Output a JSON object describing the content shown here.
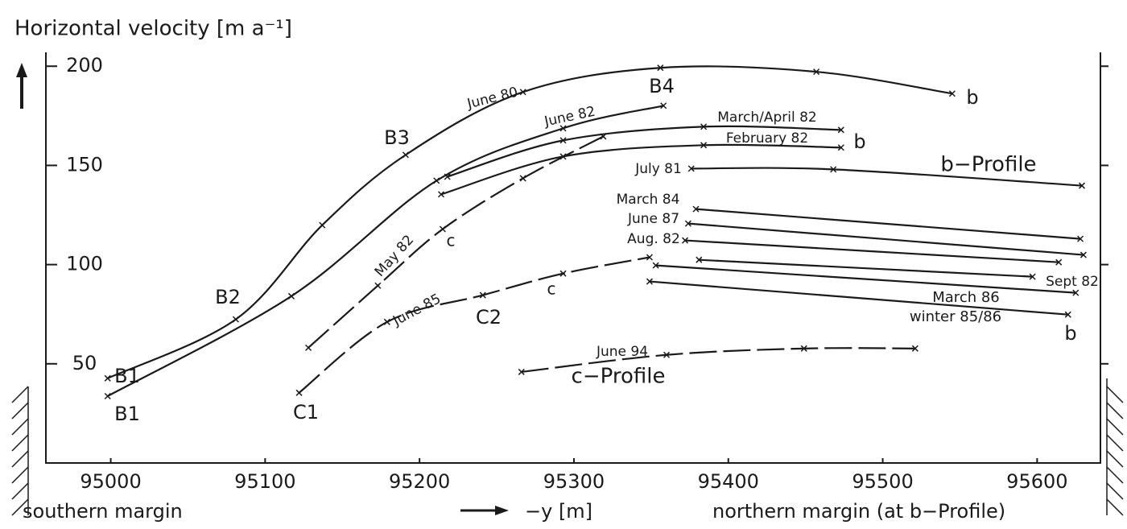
{
  "chart_data": {
    "type": "line",
    "title": "Horizontal velocity [m a⁻¹]",
    "x_label": "−y [m]",
    "left_label": "southern margin",
    "right_label": "northern margin (at b−Profile)",
    "color": "#1a1a1a",
    "xlim": [
      94958,
      95641
    ],
    "ylim": [
      0,
      207
    ],
    "xticks": [
      95000,
      95100,
      95200,
      95300,
      95400,
      95500,
      95600
    ],
    "yticks": [
      50,
      100,
      150,
      200
    ],
    "series": [
      {
        "name": "June 80",
        "style": "solid",
        "x": [
          94998,
          95081,
          95137,
          95191,
          95267,
          95356,
          95457,
          95545
        ],
        "values": [
          42.7,
          72.4,
          119.9,
          155.3,
          187.0,
          199.2,
          197.2,
          186.2
        ]
      },
      {
        "name": "June 82",
        "style": "solid",
        "x": [
          94998,
          95117,
          95211,
          95293,
          95358
        ],
        "values": [
          33.7,
          84.1,
          142.3,
          168.7,
          180.1
        ]
      },
      {
        "name": "March/April 82",
        "style": "solid",
        "x": [
          95218,
          95293,
          95384,
          95473
        ],
        "values": [
          144.3,
          162.6,
          169.5,
          167.9
        ]
      },
      {
        "name": "February 82",
        "style": "solid",
        "x": [
          95214,
          95293,
          95384,
          95473
        ],
        "values": [
          135.4,
          154.5,
          160.2,
          159.0
        ]
      },
      {
        "name": "July 81",
        "style": "solid",
        "x": [
          95376,
          95468,
          95629
        ],
        "values": [
          148.4,
          148.0,
          139.8
        ]
      },
      {
        "name": "March 84",
        "style": "solid",
        "x": [
          95379,
          95628
        ],
        "values": [
          128.0,
          113.0
        ]
      },
      {
        "name": "June 87",
        "style": "solid",
        "x": [
          95374,
          95630
        ],
        "values": [
          120.7,
          104.9
        ]
      },
      {
        "name": "Aug. 82",
        "style": "solid",
        "x": [
          95372,
          95614
        ],
        "values": [
          112.2,
          101.2
        ]
      },
      {
        "name": "Sept 82",
        "style": "solid",
        "x": [
          95381,
          95597
        ],
        "values": [
          102.4,
          93.9
        ]
      },
      {
        "name": "March 86",
        "style": "solid",
        "x": [
          95353,
          95625
        ],
        "values": [
          99.6,
          85.8
        ]
      },
      {
        "name": "winter 85/86",
        "style": "solid",
        "x": [
          95349,
          95620
        ],
        "values": [
          91.5,
          74.8
        ]
      },
      {
        "name": "May 82",
        "style": "dashed",
        "x": [
          95128,
          95173,
          95215,
          95267,
          95319
        ],
        "values": [
          58.1,
          89.4,
          117.9,
          143.5,
          164.6
        ]
      },
      {
        "name": "June 85",
        "style": "dashed",
        "x": [
          95122,
          95179,
          95241,
          95293,
          95349
        ],
        "values": [
          35.4,
          71.1,
          84.6,
          95.5,
          103.7
        ]
      },
      {
        "name": "June 94",
        "style": "dashed",
        "x": [
          95266,
          95360,
          95449,
          95521
        ],
        "values": [
          45.9,
          54.5,
          57.7,
          57.7
        ]
      }
    ],
    "annotations": [
      "B1",
      "B1",
      "B2",
      "B3",
      "B4",
      "C1",
      "C2",
      "c",
      "c",
      "b",
      "b",
      "b",
      "b−Profile",
      "c−Profile"
    ]
  }
}
